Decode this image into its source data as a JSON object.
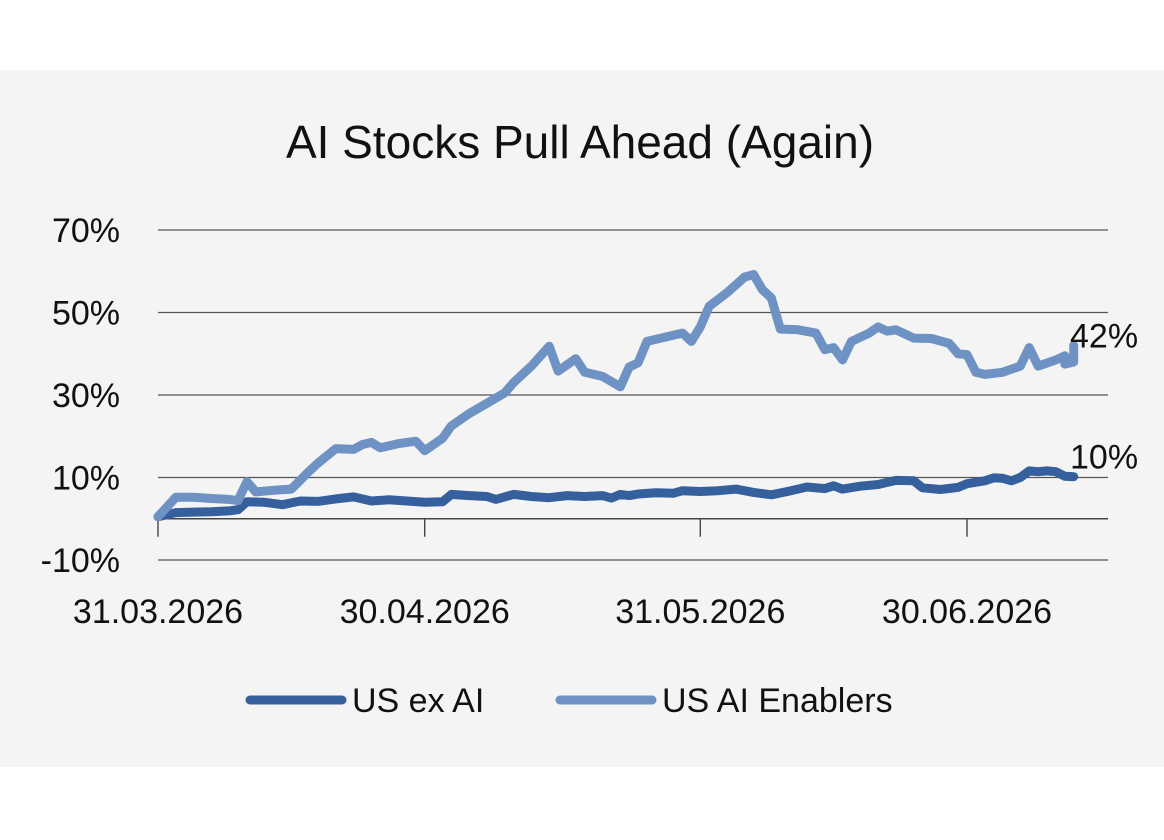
{
  "chart_data": {
    "type": "line",
    "title": "AI Stocks Pull Ahead (Again)",
    "ylim": [
      -10,
      70
    ],
    "yticks": [
      70,
      50,
      30,
      10,
      -10
    ],
    "ytick_labels": [
      "70%",
      "50%",
      "30%",
      "10%",
      "-10%"
    ],
    "x_range": [
      "2026-03-31",
      "2026-07-12"
    ],
    "xticks": [
      "2026-03-31",
      "2026-04-30",
      "2026-05-31",
      "2026-06-30"
    ],
    "xtick_labels": [
      "31.03.2026",
      "30.04.2026",
      "31.05.2026",
      "30.06.2026"
    ],
    "grid": "horizontal",
    "legend_position": "bottom",
    "series": [
      {
        "name": "US ex AI",
        "color": "#355f9d",
        "end_label": "10%",
        "points": [
          [
            "2026-03-31",
            0.5
          ],
          [
            "2026-04-02",
            1.5
          ],
          [
            "2026-04-04",
            1.6
          ],
          [
            "2026-04-06",
            1.7
          ],
          [
            "2026-04-08",
            1.9
          ],
          [
            "2026-04-09",
            2.2
          ],
          [
            "2026-04-10",
            4.1
          ],
          [
            "2026-04-12",
            4.0
          ],
          [
            "2026-04-14",
            3.4
          ],
          [
            "2026-04-16",
            4.3
          ],
          [
            "2026-04-18",
            4.2
          ],
          [
            "2026-04-20",
            4.8
          ],
          [
            "2026-04-22",
            5.3
          ],
          [
            "2026-04-24",
            4.3
          ],
          [
            "2026-04-26",
            4.6
          ],
          [
            "2026-04-28",
            4.3
          ],
          [
            "2026-04-30",
            4.0
          ],
          [
            "2026-05-02",
            4.1
          ],
          [
            "2026-05-03",
            5.9
          ],
          [
            "2026-05-05",
            5.6
          ],
          [
            "2026-05-07",
            5.4
          ],
          [
            "2026-05-08",
            4.7
          ],
          [
            "2026-05-10",
            5.9
          ],
          [
            "2026-05-12",
            5.4
          ],
          [
            "2026-05-14",
            5.1
          ],
          [
            "2026-05-16",
            5.6
          ],
          [
            "2026-05-18",
            5.4
          ],
          [
            "2026-05-20",
            5.6
          ],
          [
            "2026-05-21",
            5.0
          ],
          [
            "2026-05-22",
            5.9
          ],
          [
            "2026-05-23",
            5.6
          ],
          [
            "2026-05-24",
            6.0
          ],
          [
            "2026-05-26",
            6.3
          ],
          [
            "2026-05-28",
            6.2
          ],
          [
            "2026-05-29",
            6.8
          ],
          [
            "2026-05-31",
            6.6
          ],
          [
            "2026-06-02",
            6.8
          ],
          [
            "2026-06-04",
            7.2
          ],
          [
            "2026-06-06",
            6.4
          ],
          [
            "2026-06-08",
            5.8
          ],
          [
            "2026-06-10",
            6.7
          ],
          [
            "2026-06-12",
            7.7
          ],
          [
            "2026-06-14",
            7.3
          ],
          [
            "2026-06-15",
            8.0
          ],
          [
            "2026-06-16",
            7.2
          ],
          [
            "2026-06-18",
            7.9
          ],
          [
            "2026-06-20",
            8.3
          ],
          [
            "2026-06-22",
            9.3
          ],
          [
            "2026-06-24",
            9.2
          ],
          [
            "2026-06-25",
            7.5
          ],
          [
            "2026-06-27",
            7.1
          ],
          [
            "2026-06-29",
            7.6
          ],
          [
            "2026-06-30",
            8.5
          ],
          [
            "2026-07-02",
            9.2
          ],
          [
            "2026-07-03",
            9.9
          ],
          [
            "2026-07-04",
            9.8
          ],
          [
            "2026-07-05",
            9.2
          ],
          [
            "2026-07-06",
            10.0
          ],
          [
            "2026-07-07",
            11.6
          ],
          [
            "2026-07-08",
            11.4
          ],
          [
            "2026-07-09",
            11.6
          ],
          [
            "2026-07-10",
            11.4
          ],
          [
            "2026-07-11",
            10.3
          ],
          [
            "2026-07-12",
            10.2
          ]
        ]
      },
      {
        "name": "US AI Enablers",
        "color": "#6e92c3",
        "end_label": "42%",
        "points": [
          [
            "2026-03-31",
            0.5
          ],
          [
            "2026-04-02",
            5.2
          ],
          [
            "2026-04-04",
            5.2
          ],
          [
            "2026-04-06",
            4.9
          ],
          [
            "2026-04-08",
            4.7
          ],
          [
            "2026-04-09",
            4.4
          ],
          [
            "2026-04-10",
            9.0
          ],
          [
            "2026-04-11",
            6.5
          ],
          [
            "2026-04-13",
            6.9
          ],
          [
            "2026-04-15",
            7.2
          ],
          [
            "2026-04-17",
            11.5
          ],
          [
            "2026-04-18",
            13.5
          ],
          [
            "2026-04-20",
            17.0
          ],
          [
            "2026-04-22",
            16.8
          ],
          [
            "2026-04-23",
            18.0
          ],
          [
            "2026-04-24",
            18.5
          ],
          [
            "2026-04-25",
            17.2
          ],
          [
            "2026-04-27",
            18.2
          ],
          [
            "2026-04-29",
            18.8
          ],
          [
            "2026-04-30",
            16.5
          ],
          [
            "2026-05-02",
            19.5
          ],
          [
            "2026-05-03",
            22.5
          ],
          [
            "2026-05-05",
            25.5
          ],
          [
            "2026-05-07",
            28.0
          ],
          [
            "2026-05-09",
            30.5
          ],
          [
            "2026-05-10",
            33.0
          ],
          [
            "2026-05-12",
            37.0
          ],
          [
            "2026-05-14",
            41.8
          ],
          [
            "2026-05-15",
            35.8
          ],
          [
            "2026-05-17",
            38.8
          ],
          [
            "2026-05-18",
            35.5
          ],
          [
            "2026-05-20",
            34.5
          ],
          [
            "2026-05-22",
            32.0
          ],
          [
            "2026-05-23",
            36.8
          ],
          [
            "2026-05-24",
            37.8
          ],
          [
            "2026-05-25",
            43.0
          ],
          [
            "2026-05-27",
            44.0
          ],
          [
            "2026-05-29",
            45.0
          ],
          [
            "2026-05-30",
            43.0
          ],
          [
            "2026-05-31",
            46.5
          ],
          [
            "2026-06-01",
            51.5
          ],
          [
            "2026-06-03",
            54.8
          ],
          [
            "2026-06-05",
            58.6
          ],
          [
            "2026-06-06",
            59.2
          ],
          [
            "2026-06-07",
            55.5
          ],
          [
            "2026-06-08",
            53.5
          ],
          [
            "2026-06-09",
            46.0
          ],
          [
            "2026-06-11",
            45.8
          ],
          [
            "2026-06-13",
            45.0
          ],
          [
            "2026-06-14",
            41.0
          ],
          [
            "2026-06-15",
            41.5
          ],
          [
            "2026-06-16",
            38.5
          ],
          [
            "2026-06-17",
            43.0
          ],
          [
            "2026-06-19",
            45.0
          ],
          [
            "2026-06-20",
            46.5
          ],
          [
            "2026-06-21",
            45.5
          ],
          [
            "2026-06-22",
            45.8
          ],
          [
            "2026-06-24",
            43.8
          ],
          [
            "2026-06-26",
            43.7
          ],
          [
            "2026-06-28",
            42.5
          ],
          [
            "2026-06-29",
            40.0
          ],
          [
            "2026-06-30",
            39.8
          ],
          [
            "2026-07-01",
            35.5
          ],
          [
            "2026-07-02",
            35.0
          ],
          [
            "2026-07-04",
            35.5
          ],
          [
            "2026-07-06",
            37.0
          ],
          [
            "2026-07-07",
            41.5
          ],
          [
            "2026-07-08",
            37.0
          ],
          [
            "2026-07-10",
            38.5
          ],
          [
            "2026-07-11",
            39.5
          ],
          [
            "2026-07-11",
            37.5
          ],
          [
            "2026-07-12",
            38.0
          ],
          [
            "2026-07-12",
            42.0
          ]
        ]
      }
    ]
  }
}
